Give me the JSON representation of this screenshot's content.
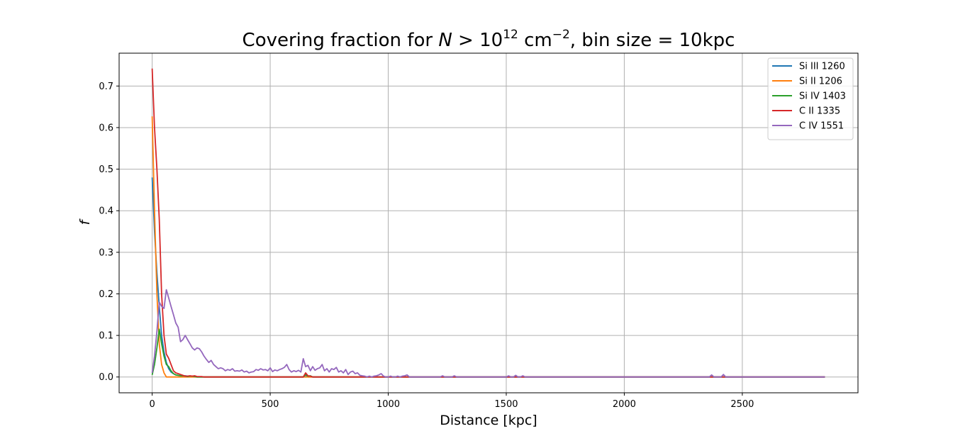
{
  "chart_data": {
    "type": "line",
    "title": {
      "prefix": "Covering fraction for ",
      "var": "N",
      "op": " > ",
      "base": "10",
      "exp": "12",
      "unit": " cm",
      "unit_exp": "−2",
      "suffix": ", bin size = 10kpc"
    },
    "xlabel": "Distance [kpc]",
    "ylabel": "f",
    "xlim": [
      -140,
      2990
    ],
    "ylim": [
      -0.038,
      0.779
    ],
    "xticks": [
      0,
      500,
      1000,
      1500,
      2000,
      2500
    ],
    "xtick_labels": [
      "0",
      "500",
      "1000",
      "1500",
      "2000",
      "2500"
    ],
    "yticks": [
      0.0,
      0.1,
      0.2,
      0.3,
      0.4,
      0.5,
      0.6,
      0.7
    ],
    "ytick_labels": [
      "0.0",
      "0.1",
      "0.2",
      "0.3",
      "0.4",
      "0.5",
      "0.6",
      "0.7"
    ],
    "grid": true,
    "legend_position": "top-right",
    "series": [
      {
        "name": "Si III 1260",
        "color": "#1f77b4",
        "x": [
          0,
          10,
          20,
          30,
          40,
          50,
          60,
          70,
          80,
          90,
          100,
          110,
          120,
          130,
          140,
          150,
          160,
          170,
          180,
          190,
          200,
          640,
          650,
          660,
          2850
        ],
        "y": [
          0.48,
          0.35,
          0.25,
          0.17,
          0.1,
          0.06,
          0.035,
          0.02,
          0.012,
          0.008,
          0.005,
          0.004,
          0.003,
          0.002,
          0.003,
          0.002,
          0.001,
          0.001,
          0.001,
          0.0,
          0.0,
          0.0,
          0.005,
          0.0,
          0.0
        ]
      },
      {
        "name": "Si II 1206",
        "color": "#ff7f0e",
        "x": [
          0,
          10,
          20,
          30,
          40,
          50,
          60,
          2850
        ],
        "y": [
          0.627,
          0.4,
          0.2,
          0.08,
          0.03,
          0.01,
          0.0,
          0.0
        ]
      },
      {
        "name": "Si IV 1403",
        "color": "#2ca02c",
        "x": [
          0,
          10,
          20,
          30,
          40,
          50,
          60,
          70,
          80,
          90,
          100,
          110,
          120,
          130,
          140,
          150,
          160,
          170,
          180,
          190,
          200,
          640,
          650,
          660,
          670,
          680,
          2850
        ],
        "y": [
          0.005,
          0.03,
          0.07,
          0.115,
          0.08,
          0.05,
          0.03,
          0.025,
          0.015,
          0.008,
          0.005,
          0.004,
          0.003,
          0.003,
          0.002,
          0.001,
          0.002,
          0.002,
          0.001,
          0.0,
          0.0,
          0.0,
          0.006,
          0.002,
          0.003,
          0.0,
          0.0
        ]
      },
      {
        "name": "C II 1335",
        "color": "#d62728",
        "x": [
          0,
          10,
          20,
          30,
          40,
          50,
          60,
          70,
          80,
          90,
          100,
          110,
          120,
          130,
          140,
          150,
          160,
          170,
          180,
          190,
          200,
          210,
          220,
          640,
          650,
          660,
          670,
          680,
          2850
        ],
        "y": [
          0.742,
          0.6,
          0.5,
          0.38,
          0.2,
          0.1,
          0.055,
          0.045,
          0.03,
          0.015,
          0.01,
          0.008,
          0.006,
          0.004,
          0.002,
          0.002,
          0.003,
          0.002,
          0.003,
          0.001,
          0.001,
          0.001,
          0.0,
          0.0,
          0.01,
          0.003,
          0.002,
          0.0,
          0.0
        ]
      },
      {
        "name": "C IV 1551",
        "color": "#9467bd",
        "x": [
          0,
          10,
          20,
          30,
          40,
          50,
          60,
          70,
          80,
          90,
          100,
          110,
          120,
          130,
          140,
          150,
          160,
          170,
          180,
          190,
          200,
          210,
          220,
          230,
          240,
          250,
          260,
          270,
          280,
          290,
          300,
          310,
          320,
          330,
          340,
          350,
          360,
          370,
          380,
          390,
          400,
          410,
          420,
          430,
          440,
          450,
          460,
          470,
          480,
          490,
          500,
          510,
          520,
          530,
          540,
          550,
          560,
          570,
          580,
          590,
          600,
          610,
          620,
          630,
          640,
          650,
          660,
          670,
          680,
          690,
          700,
          710,
          720,
          730,
          740,
          750,
          760,
          770,
          780,
          790,
          800,
          810,
          820,
          830,
          840,
          850,
          860,
          870,
          880,
          890,
          900,
          910,
          920,
          930,
          940,
          950,
          960,
          970,
          980,
          990,
          1000,
          1010,
          1020,
          1030,
          1040,
          1050,
          1060,
          1070,
          1080,
          1090,
          1100,
          1220,
          1230,
          1240,
          1270,
          1280,
          1290,
          1500,
          1510,
          1520,
          1530,
          1540,
          1550,
          1560,
          1570,
          1580,
          2360,
          2370,
          2380,
          2410,
          2420,
          2430,
          2850
        ],
        "y": [
          0.01,
          0.05,
          0.11,
          0.18,
          0.17,
          0.165,
          0.21,
          0.19,
          0.17,
          0.15,
          0.13,
          0.12,
          0.085,
          0.09,
          0.1,
          0.09,
          0.08,
          0.07,
          0.065,
          0.07,
          0.068,
          0.06,
          0.05,
          0.042,
          0.035,
          0.04,
          0.03,
          0.025,
          0.02,
          0.022,
          0.02,
          0.015,
          0.018,
          0.016,
          0.02,
          0.014,
          0.015,
          0.014,
          0.017,
          0.012,
          0.014,
          0.01,
          0.012,
          0.013,
          0.018,
          0.016,
          0.02,
          0.017,
          0.018,
          0.015,
          0.022,
          0.013,
          0.017,
          0.015,
          0.018,
          0.02,
          0.023,
          0.03,
          0.018,
          0.012,
          0.015,
          0.013,
          0.016,
          0.012,
          0.044,
          0.025,
          0.028,
          0.015,
          0.025,
          0.016,
          0.02,
          0.022,
          0.03,
          0.015,
          0.02,
          0.012,
          0.02,
          0.018,
          0.023,
          0.012,
          0.015,
          0.01,
          0.018,
          0.006,
          0.012,
          0.014,
          0.008,
          0.01,
          0.004,
          0.003,
          0.002,
          0.0,
          0.002,
          0.0,
          0.002,
          0.003,
          0.005,
          0.008,
          0.002,
          0.0,
          0.0,
          0.002,
          0.0,
          0.0,
          0.002,
          0.0,
          0.002,
          0.003,
          0.005,
          0.0,
          0.0,
          0.0,
          0.003,
          0.0,
          0.0,
          0.003,
          0.0,
          0.0,
          0.003,
          0.0,
          0.0,
          0.004,
          0.0,
          0.0,
          0.003,
          0.0,
          0.0,
          0.005,
          0.0,
          0.0,
          0.006,
          0.0,
          0.0
        ]
      }
    ]
  }
}
